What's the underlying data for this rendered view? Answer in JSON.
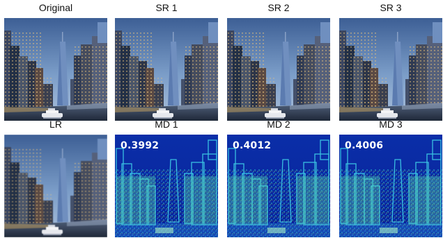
{
  "panels": [
    {
      "label": "Original",
      "type": "photo"
    },
    {
      "label": "SR 1",
      "type": "photo"
    },
    {
      "label": "SR 2",
      "type": "photo"
    },
    {
      "label": "SR 3",
      "type": "photo"
    },
    {
      "label": "LR",
      "type": "photo"
    },
    {
      "label": "MD 1",
      "type": "map",
      "score": "0.3992"
    },
    {
      "label": "MD 2",
      "type": "map",
      "score": "0.4012"
    },
    {
      "label": "MD 3",
      "type": "map",
      "score": "0.4006"
    }
  ]
}
